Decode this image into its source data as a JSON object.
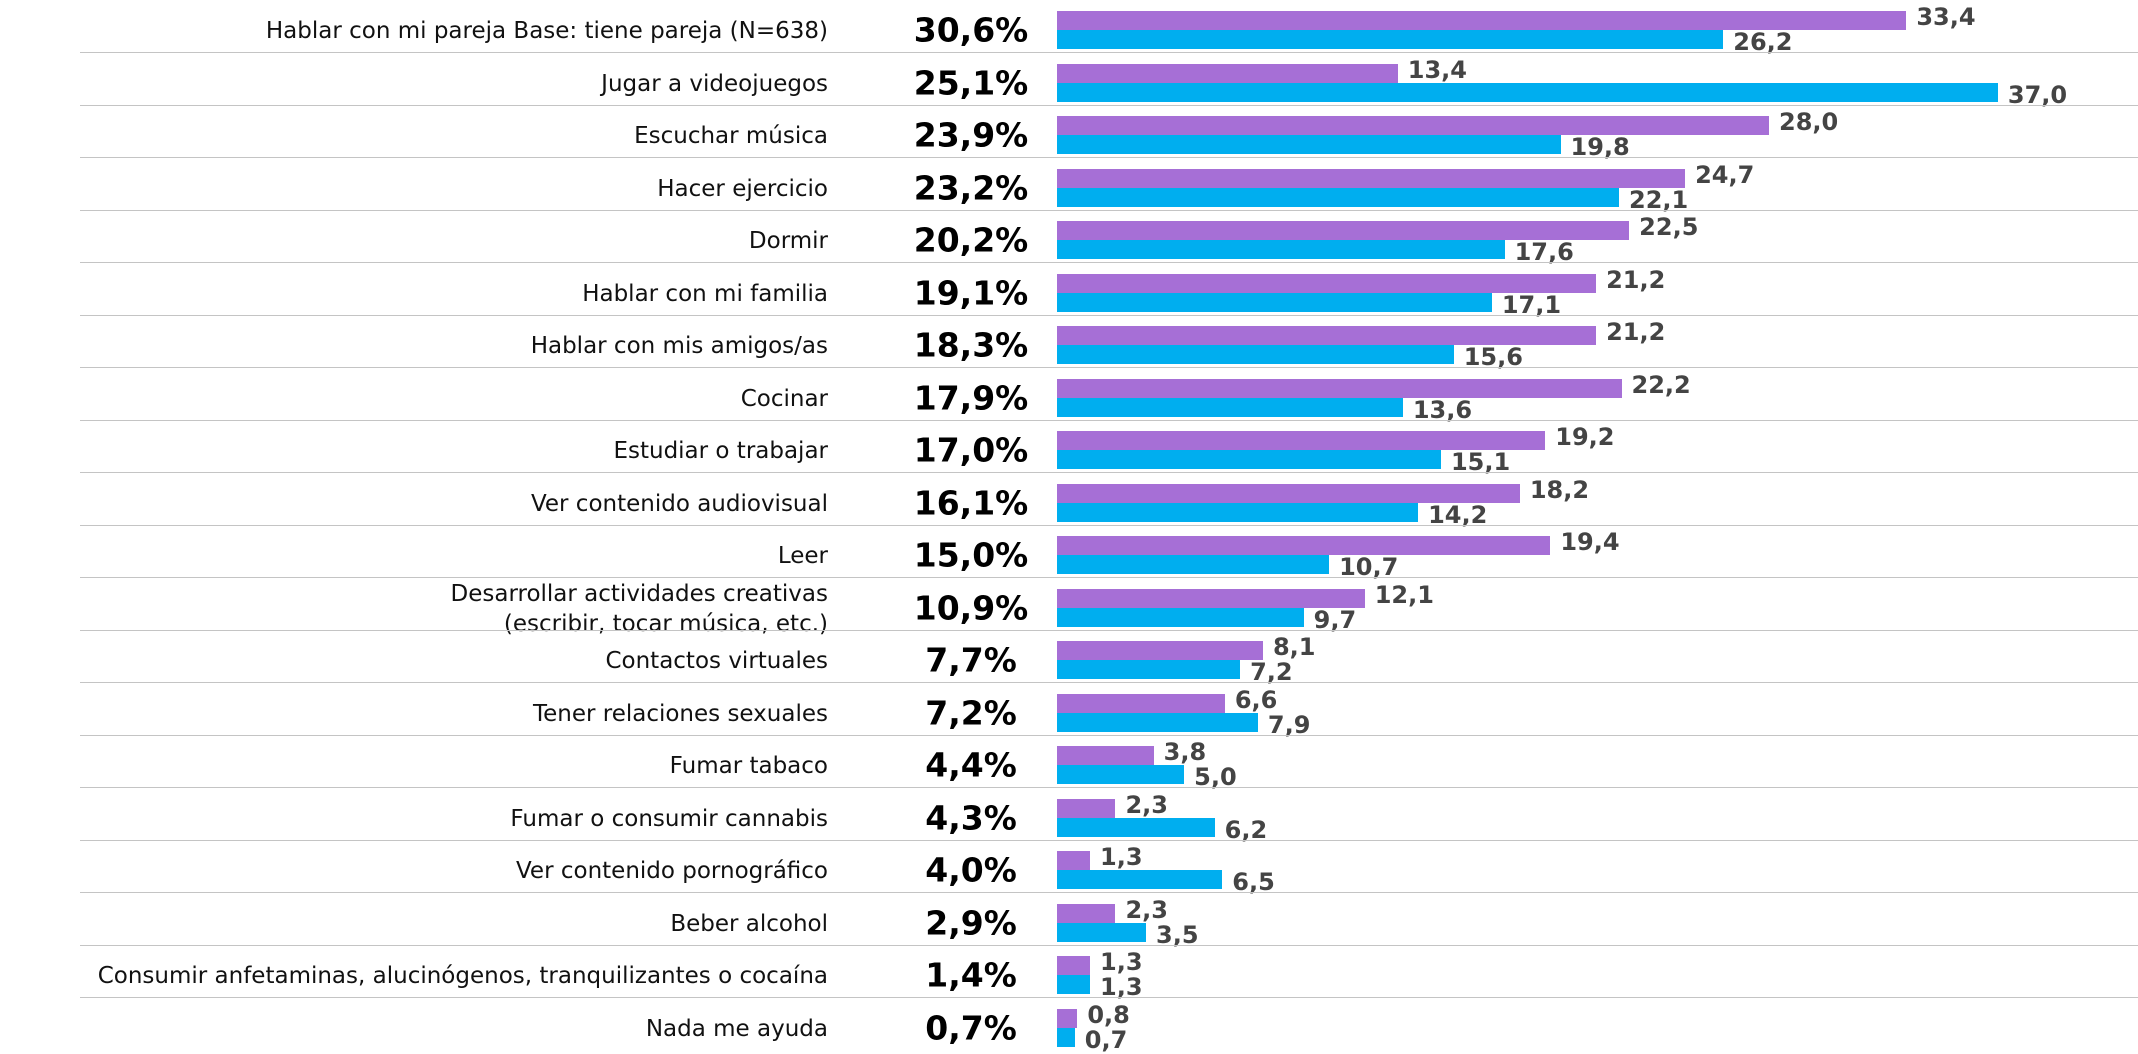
{
  "chart_data": {
    "type": "bar",
    "categories": [
      "Hablar con mi pareja Base: tiene pareja (N=638)",
      "Jugar a videojuegos",
      "Escuchar música",
      "Hacer ejercicio",
      "Dormir",
      "Hablar con mi familia",
      "Hablar con mis amigos/as",
      "Cocinar",
      "Estudiar o trabajar",
      "Ver contenido audiovisual",
      "Leer",
      "Desarrollar actividades creativas\n(escribir, tocar música, etc.)",
      "Contactos virtuales",
      "Tener relaciones sexuales",
      "Fumar tabaco",
      "Fumar o consumir cannabis",
      "Ver contenido pornográfico",
      "Beber alcohol",
      "Consumir anfetaminas, alucinógenos, tranquilizantes o cocaína",
      "Nada me ayuda"
    ],
    "totals": [
      30.6,
      25.1,
      23.9,
      23.2,
      20.2,
      19.1,
      18.3,
      17.9,
      17.0,
      16.1,
      15.0,
      10.9,
      7.7,
      7.2,
      4.4,
      4.3,
      4.0,
      2.9,
      1.4,
      0.7
    ],
    "totals_labels": [
      "30,6%",
      "25,1%",
      "23,9%",
      "23,2%",
      "20,2%",
      "19,1%",
      "18,3%",
      "17,9%",
      "17,0%",
      "16,1%",
      "15,0%",
      "10,9%",
      "7,7%",
      "7,2%",
      "4,4%",
      "4,3%",
      "4,0%",
      "2,9%",
      "1,4%",
      "0,7%"
    ],
    "series": [
      {
        "color": "#a66fd6",
        "values": [
          33.4,
          13.4,
          28.0,
          24.7,
          22.5,
          21.2,
          21.2,
          22.2,
          19.2,
          18.2,
          19.4,
          12.1,
          8.1,
          6.6,
          3.8,
          2.3,
          1.3,
          2.3,
          1.3,
          0.8
        ],
        "value_labels": [
          "33,4",
          "13,4",
          "28,0",
          "24,7",
          "22,5",
          "21,2",
          "21,2",
          "22,2",
          "19,2",
          "18,2",
          "19,4",
          "12,1",
          "8,1",
          "6,6",
          "3,8",
          "2,3",
          "1,3",
          "2,3",
          "1,3",
          "0,8"
        ]
      },
      {
        "color": "#00aeef",
        "values": [
          26.2,
          37.0,
          19.8,
          22.1,
          17.6,
          17.1,
          15.6,
          13.6,
          15.1,
          14.2,
          10.7,
          9.7,
          7.2,
          7.9,
          5.0,
          6.2,
          6.5,
          3.5,
          1.3,
          0.7
        ],
        "value_labels": [
          "26,2",
          "37,0",
          "19,8",
          "22,1",
          "17,6",
          "17,1",
          "15,6",
          "13,6",
          "15,1",
          "14,2",
          "10,7",
          "9,7",
          "7,2",
          "7,9",
          "5,0",
          "6,2",
          "6,5",
          "3,5",
          "1,3",
          "0,7"
        ]
      }
    ]
  }
}
